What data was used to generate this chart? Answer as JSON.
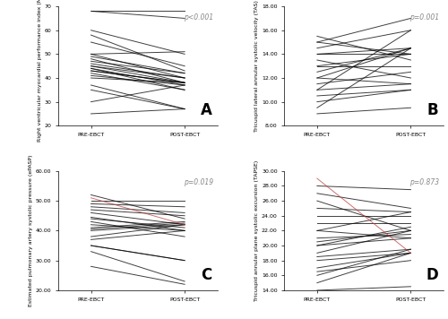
{
  "panel_A": {
    "ylabel": "Right ventricular myocardial performance index (MPI)",
    "p_value": "p<0.001",
    "ylim": [
      0.2,
      0.7
    ],
    "yticks": [
      0.2,
      0.3,
      0.4,
      0.5,
      0.6,
      0.7
    ],
    "ytick_labels": [
      "20",
      "30",
      "40",
      "50",
      "60",
      "70"
    ],
    "pre": [
      0.25,
      0.3,
      0.35,
      0.37,
      0.4,
      0.41,
      0.42,
      0.43,
      0.43,
      0.44,
      0.44,
      0.45,
      0.45,
      0.46,
      0.47,
      0.48,
      0.49,
      0.5,
      0.5,
      0.55,
      0.58,
      0.6,
      0.68,
      0.68
    ],
    "post": [
      0.27,
      0.37,
      0.27,
      0.27,
      0.38,
      0.37,
      0.35,
      0.38,
      0.38,
      0.37,
      0.35,
      0.4,
      0.38,
      0.4,
      0.42,
      0.38,
      0.42,
      0.51,
      0.4,
      0.45,
      0.43,
      0.5,
      0.65,
      0.68
    ],
    "line_colors": [
      "k",
      "k",
      "k",
      "k",
      "k",
      "k",
      "k",
      "k",
      "k",
      "k",
      "k",
      "k",
      "k",
      "k",
      "k",
      "k",
      "k",
      "k",
      "k",
      "k",
      "k",
      "k",
      "k",
      "k"
    ]
  },
  "panel_B": {
    "ylabel": "Tricuspid lateral annular systolic velocity (TAS)",
    "p_value": "p=0.001",
    "ylim": [
      8.0,
      18.0
    ],
    "yticks": [
      8.0,
      10.0,
      12.0,
      14.0,
      16.0,
      18.0
    ],
    "ytick_labels": [
      "8.00",
      "10.00",
      "12.00",
      "14.00",
      "16.00",
      "18.00"
    ],
    "pre": [
      9.0,
      9.5,
      10.0,
      10.5,
      11.0,
      11.0,
      11.5,
      12.0,
      12.0,
      12.5,
      13.0,
      13.0,
      13.5,
      14.0,
      14.0,
      14.5,
      15.0,
      15.0,
      15.5
    ],
    "post": [
      9.5,
      14.5,
      11.0,
      11.0,
      11.5,
      16.0,
      12.5,
      14.5,
      11.5,
      14.5,
      13.0,
      14.0,
      12.0,
      14.0,
      14.5,
      16.0,
      17.0,
      14.0,
      13.5
    ],
    "line_colors": [
      "k",
      "k",
      "k",
      "k",
      "k",
      "k",
      "k",
      "k",
      "k",
      "k",
      "k",
      "k",
      "k",
      "k",
      "k",
      "k",
      "k",
      "k",
      "k"
    ]
  },
  "panel_C": {
    "ylabel": "Estimated pulmonary artery systolic pressure (ePASP)",
    "p_value": "p=0.019",
    "ylim": [
      20.0,
      60.0
    ],
    "yticks": [
      20.0,
      30.0,
      40.0,
      50.0,
      60.0
    ],
    "ytick_labels": [
      "20.00",
      "30.00",
      "40.00",
      "50.00",
      "60.00"
    ],
    "pre": [
      28.0,
      33.0,
      35.0,
      35.0,
      37.0,
      38.0,
      40.0,
      40.5,
      41.0,
      42.0,
      43.0,
      44.0,
      44.5,
      46.0,
      47.0,
      48.0,
      49.0,
      50.0,
      51.0,
      52.0
    ],
    "post": [
      22.0,
      23.0,
      30.0,
      30.0,
      40.0,
      42.0,
      42.0,
      42.5,
      43.0,
      40.0,
      38.0,
      41.0,
      40.0,
      42.0,
      45.0,
      46.0,
      48.0,
      50.0,
      42.0,
      44.0
    ],
    "line_colors": [
      "k",
      "k",
      "k",
      "k",
      "k",
      "k",
      "k",
      "k",
      "k",
      "k",
      "k",
      "k",
      "k",
      "k",
      "k",
      "k",
      "k",
      "k",
      "#c04040",
      "k"
    ]
  },
  "panel_D": {
    "ylabel": "Tricuspid annular plane systolic excursion (TAPSE)",
    "p_value": "p=0.873",
    "ylim": [
      14.0,
      30.0
    ],
    "yticks": [
      14.0,
      16.0,
      18.0,
      20.0,
      22.0,
      24.0,
      26.0,
      28.0,
      30.0
    ],
    "ytick_labels": [
      "14.00",
      "16.00",
      "18.00",
      "20.00",
      "22.00",
      "24.00",
      "26.00",
      "28.00",
      "30.00"
    ],
    "pre": [
      14.0,
      14.0,
      15.0,
      16.0,
      16.5,
      17.0,
      18.0,
      18.5,
      19.0,
      20.0,
      20.0,
      20.5,
      21.0,
      22.0,
      22.0,
      23.0,
      24.0,
      25.0,
      26.0,
      27.0,
      28.0,
      29.0
    ],
    "post": [
      14.0,
      14.5,
      19.0,
      19.5,
      18.0,
      19.0,
      19.0,
      19.5,
      22.0,
      21.0,
      22.5,
      22.0,
      21.5,
      21.0,
      24.5,
      23.0,
      24.0,
      24.5,
      22.0,
      25.0,
      27.5,
      19.0
    ],
    "line_colors": [
      "k",
      "k",
      "k",
      "k",
      "k",
      "k",
      "k",
      "k",
      "k",
      "k",
      "k",
      "k",
      "k",
      "k",
      "k",
      "k",
      "k",
      "k",
      "k",
      "k",
      "k",
      "#c04040"
    ]
  },
  "xlabel_pre": "PRE-EBCT",
  "xlabel_post": "POST-EBCT",
  "line_alpha": 0.75,
  "line_width": 0.7,
  "background_color": "#ffffff",
  "label_fontsize": 4.5,
  "tick_fontsize": 4.5,
  "p_fontsize": 5.5,
  "panel_label_fontsize": 12
}
